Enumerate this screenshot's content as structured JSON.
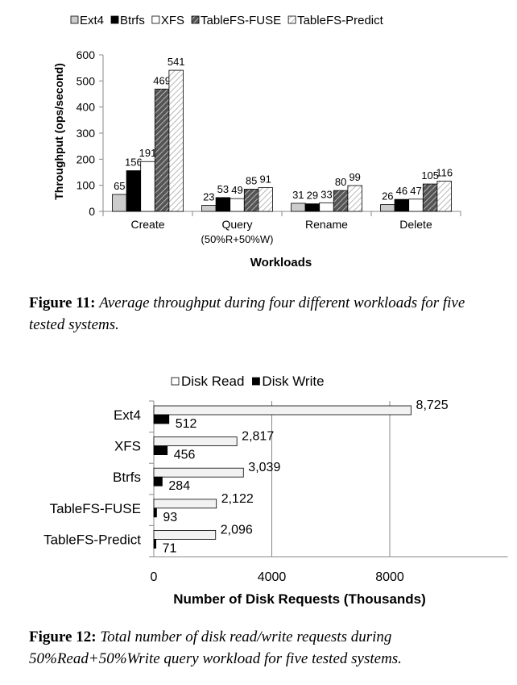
{
  "chart_data": [
    {
      "type": "bar",
      "xlabel": "Workloads",
      "ylabel": "Throughput (ops/second)",
      "ylim": [
        0,
        600
      ],
      "yticks": [
        "0",
        "100",
        "200",
        "300",
        "400",
        "500",
        "600"
      ],
      "grid": false,
      "legend_position": "top",
      "categories": [
        "Create",
        "Query (50%R+50%W)",
        "Rename",
        "Delete"
      ],
      "category_lines": [
        [
          "Create"
        ],
        [
          "Query",
          "(50%R+50%W)"
        ],
        [
          "Rename"
        ],
        [
          "Delete"
        ]
      ],
      "series": [
        {
          "name": "Ext4",
          "values": [
            65,
            23,
            31,
            26
          ],
          "fill": "#cccccc"
        },
        {
          "name": "Btrfs",
          "values": [
            156,
            53,
            29,
            46
          ],
          "fill": "#000000"
        },
        {
          "name": "XFS",
          "values": [
            191,
            49,
            33,
            47
          ],
          "fill": "#ffffff"
        },
        {
          "name": "TableFS-FUSE",
          "values": [
            469,
            85,
            80,
            105
          ],
          "fill": "hatch-dark"
        },
        {
          "name": "TableFS-Predict",
          "values": [
            541,
            91,
            99,
            116
          ],
          "fill": "hatch-light"
        }
      ]
    },
    {
      "type": "bar",
      "orientation": "horizontal",
      "xlabel": "Number of Disk Requests (Thousands)",
      "ylabel": "",
      "xlim": [
        0,
        12000
      ],
      "xticks": [
        "0",
        "4000",
        "8000"
      ],
      "grid": true,
      "legend_position": "top",
      "categories": [
        "Ext4",
        "XFS",
        "Btrfs",
        "TableFS-FUSE",
        "TableFS-Predict"
      ],
      "series": [
        {
          "name": "Disk Read",
          "values": [
            8725,
            2817,
            3039,
            2122,
            2096
          ],
          "labels": [
            "8,725",
            "2,817",
            "3,039",
            "2,122",
            "2,096"
          ],
          "fill": "#f2f2f2"
        },
        {
          "name": "Disk Write",
          "values": [
            512,
            456,
            284,
            93,
            71
          ],
          "labels": [
            "512",
            "456",
            "284",
            "93",
            "71"
          ],
          "fill": "#000000"
        }
      ]
    }
  ],
  "figure11": {
    "label": "Figure 11:",
    "text": "Average throughput during four different workloads for five tested systems."
  },
  "figure12": {
    "label": "Figure 12:",
    "text": "Total number of disk read/write requests during 50%Read+50%Write query workload for five tested systems."
  },
  "colors": {
    "axis": "#888888",
    "gridline": "#888888",
    "bar_stroke": "#000000"
  }
}
